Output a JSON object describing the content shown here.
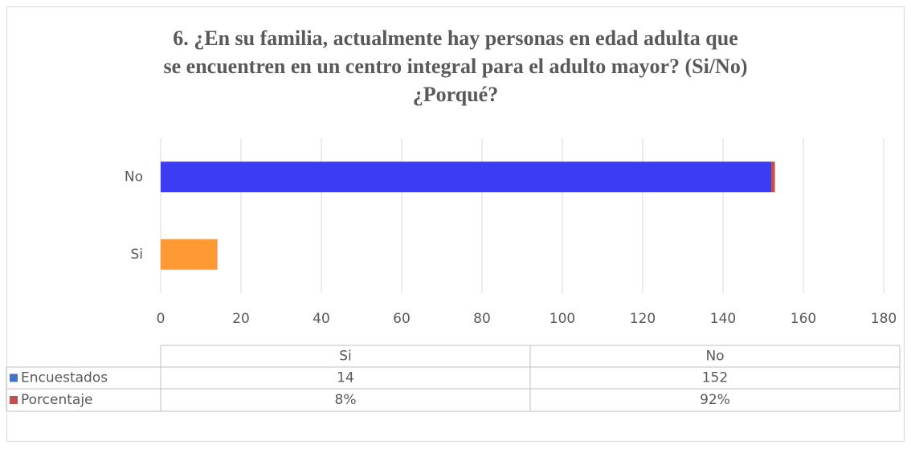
{
  "chart_data": {
    "type": "stacked-bar-horizontal",
    "title": "6. ¿En su familia, actualmente hay personas en edad adulta que\nse encuentren en un centro integral para el adulto mayor? (Si/No)\n¿Porqué?",
    "categories": [
      "Si",
      "No"
    ],
    "series": [
      {
        "name": "Encuestados",
        "color": "#4472c4",
        "colors": [
          "#ff9933",
          "#3c3cf5"
        ],
        "values": [
          14,
          152
        ]
      },
      {
        "name": "Porcentaje",
        "color": "#c0504d",
        "values": [
          0.08,
          0.92
        ],
        "value_labels": [
          "8%",
          "92%"
        ]
      }
    ],
    "xlim": [
      0,
      180
    ],
    "xticks": [
      0,
      20,
      40,
      60,
      80,
      100,
      120,
      140,
      160,
      180
    ],
    "grid": true
  }
}
